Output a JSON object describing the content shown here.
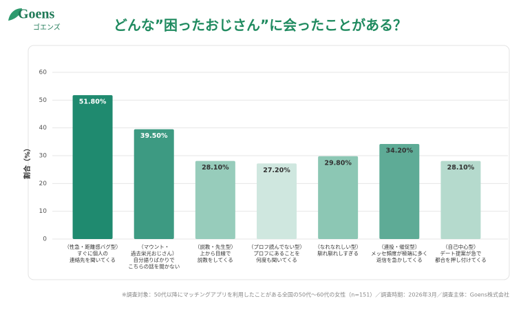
{
  "logo": {
    "name": "Goens",
    "kana": "ゴエンズ"
  },
  "chart_data": {
    "type": "bar",
    "title": "どんな”困ったおじさん”に会ったことがある？",
    "y_label": "割合（%）",
    "categories": [
      "（性急・距離感バグ型）\nすぐに個人の\n連絡先を聞いてくる",
      "（マウント・\n過去栄光おじさん）\n自分語りばかりで\nこちらの話を聞かない",
      "（説教・先生型）\n上から目線で\n説教をしてくる",
      "（プロフ読んでない型）\nプロフにあることを\n何度も聞いてくる",
      "（なれなれしい型）\n馴れ馴れしすぎる",
      "（連投・催促型）\nメッセ頻度が極端に多く\n返信を急かしてくる",
      "（自己中心型）\nデート提案が急で\n都合を押し付けてくる"
    ],
    "values": [
      51.8,
      39.5,
      28.1,
      27.2,
      29.8,
      34.2,
      28.1
    ],
    "value_labels": [
      "51.80%",
      "39.50%",
      "28.10%",
      "27.20%",
      "29.80%",
      "34.20%",
      "28.10%"
    ],
    "colors": [
      "#1f8a6f",
      "#3d9a82",
      "#97ccbb",
      "#cfe7df",
      "#8cc7b4",
      "#5eab96",
      "#b5dacd"
    ],
    "ylim": [
      0,
      60
    ],
    "yticks": [
      0,
      10,
      20,
      30,
      40,
      50,
      60
    ],
    "grid": true,
    "note": "※調査対象：50代以降にマッチングアプリを利用したことがある全国の50代〜60代の女性（n=151）／調査時期：2026年3月／調査主体：Goens株式会社"
  }
}
